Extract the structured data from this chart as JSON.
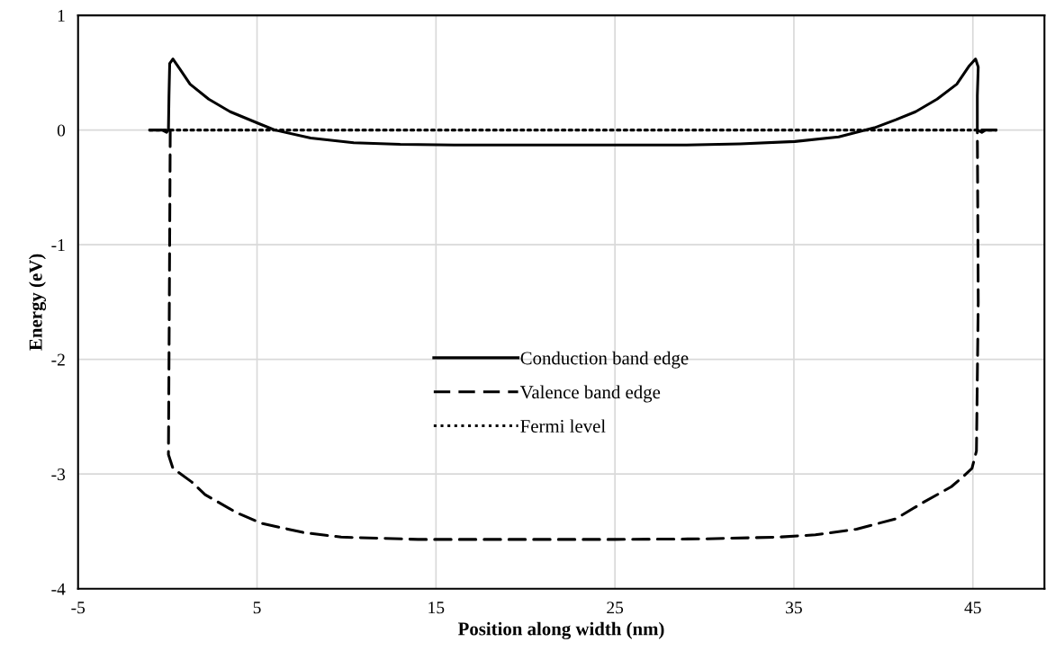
{
  "chart_data": {
    "type": "line",
    "xlabel": "Position along width (nm)",
    "ylabel": "Energy (eV)",
    "xlim": [
      -5,
      49
    ],
    "xticks": [
      -5,
      5,
      15,
      25,
      35,
      45
    ],
    "ylim": [
      -4,
      1
    ],
    "yticks": [
      -4,
      -3,
      -2,
      -1,
      0,
      1
    ],
    "grid": true,
    "legend": "center",
    "marker": "none",
    "series": [
      {
        "name": "Conduction band edge",
        "color": "#000000",
        "line_style": "solid",
        "x": [
          -1.0,
          -0.3,
          -0.05,
          0.05,
          0.08,
          0.12,
          0.3,
          0.7,
          1.26,
          2.3,
          3.5,
          5.2,
          6.0,
          8.0,
          10.4,
          13,
          16,
          20,
          25,
          29,
          32,
          35.05,
          37.5,
          39.5,
          40.7,
          41.8,
          43.0,
          44.1,
          44.8,
          45.15,
          45.3,
          45.25,
          45.25,
          45.5,
          45.7,
          46.3
        ],
        "values": [
          0,
          0,
          -0.02,
          0.0,
          0.3,
          0.58,
          0.62,
          0.53,
          0.4,
          0.27,
          0.16,
          0.05,
          0.0,
          -0.07,
          -0.11,
          -0.125,
          -0.13,
          -0.13,
          -0.13,
          -0.13,
          -0.12,
          -0.1,
          -0.06,
          0.02,
          0.09,
          0.16,
          0.27,
          0.4,
          0.56,
          0.62,
          0.55,
          0.3,
          0.0,
          -0.02,
          0,
          0
        ]
      },
      {
        "name": "Valence band edge",
        "color": "#000000",
        "line_style": "dashed",
        "x": [
          0.15,
          0.1,
          0.05,
          0.3,
          1.36,
          2.1,
          3.9,
          5.25,
          7.6,
          9.7,
          14,
          20,
          25,
          30,
          34.1,
          36.2,
          38.5,
          40.7,
          42.2,
          43.8,
          44.4,
          44.95,
          45.2,
          45.3,
          45.25
        ],
        "values": [
          0,
          -1.5,
          -2.83,
          -2.95,
          -3.07,
          -3.18,
          -3.34,
          -3.43,
          -3.51,
          -3.55,
          -3.57,
          -3.57,
          -3.57,
          -3.565,
          -3.55,
          -3.53,
          -3.48,
          -3.39,
          -3.25,
          -3.11,
          -3.03,
          -2.95,
          -2.8,
          -1.5,
          0
        ]
      },
      {
        "name": "Fermi level",
        "color": "#000000",
        "line_style": "dotted",
        "x": [
          -1.0,
          46.3
        ],
        "values": [
          0,
          0
        ]
      }
    ]
  }
}
